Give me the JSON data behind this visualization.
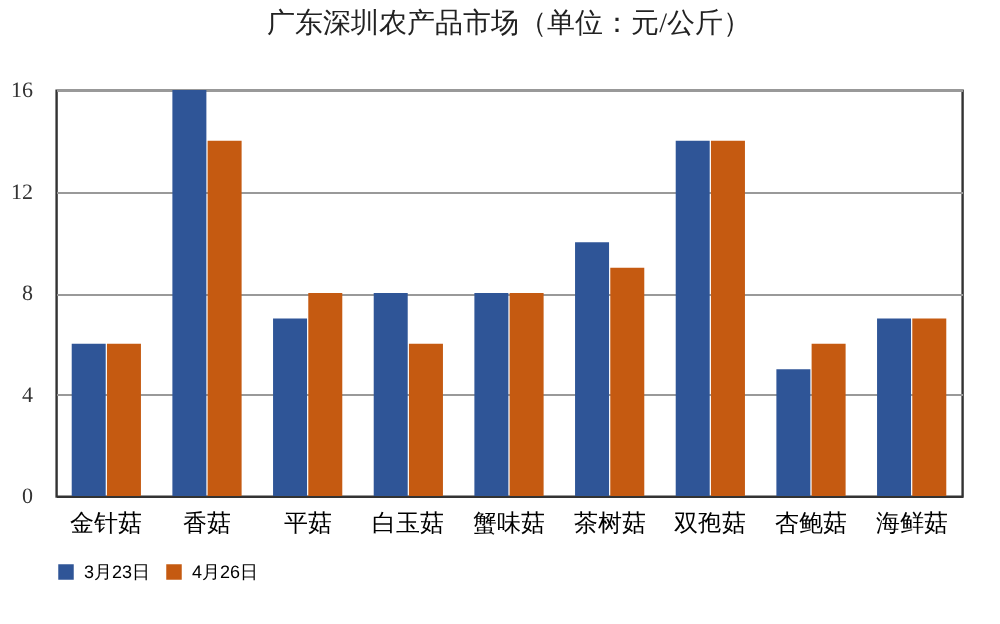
{
  "chart_data": {
    "type": "bar",
    "title": "广东深圳农产品市场（单位：元/公斤）",
    "categories": [
      "金针菇",
      "香菇",
      "平菇",
      "白玉菇",
      "蟹味菇",
      "茶树菇",
      "双孢菇",
      "杏鲍菇",
      "海鲜菇"
    ],
    "series": [
      {
        "name": "3月23日",
        "color": "#2f5597",
        "values": [
          6,
          16,
          7,
          8,
          8,
          10,
          14,
          5,
          7
        ]
      },
      {
        "name": "4月26日",
        "color": "#c55a11",
        "values": [
          6,
          14,
          8,
          6,
          8,
          9,
          14,
          6,
          7
        ]
      }
    ],
    "ylim": [
      0,
      16
    ],
    "yticks": [
      0,
      4,
      8,
      12,
      16
    ],
    "grid": "y",
    "legend": "bottom"
  }
}
